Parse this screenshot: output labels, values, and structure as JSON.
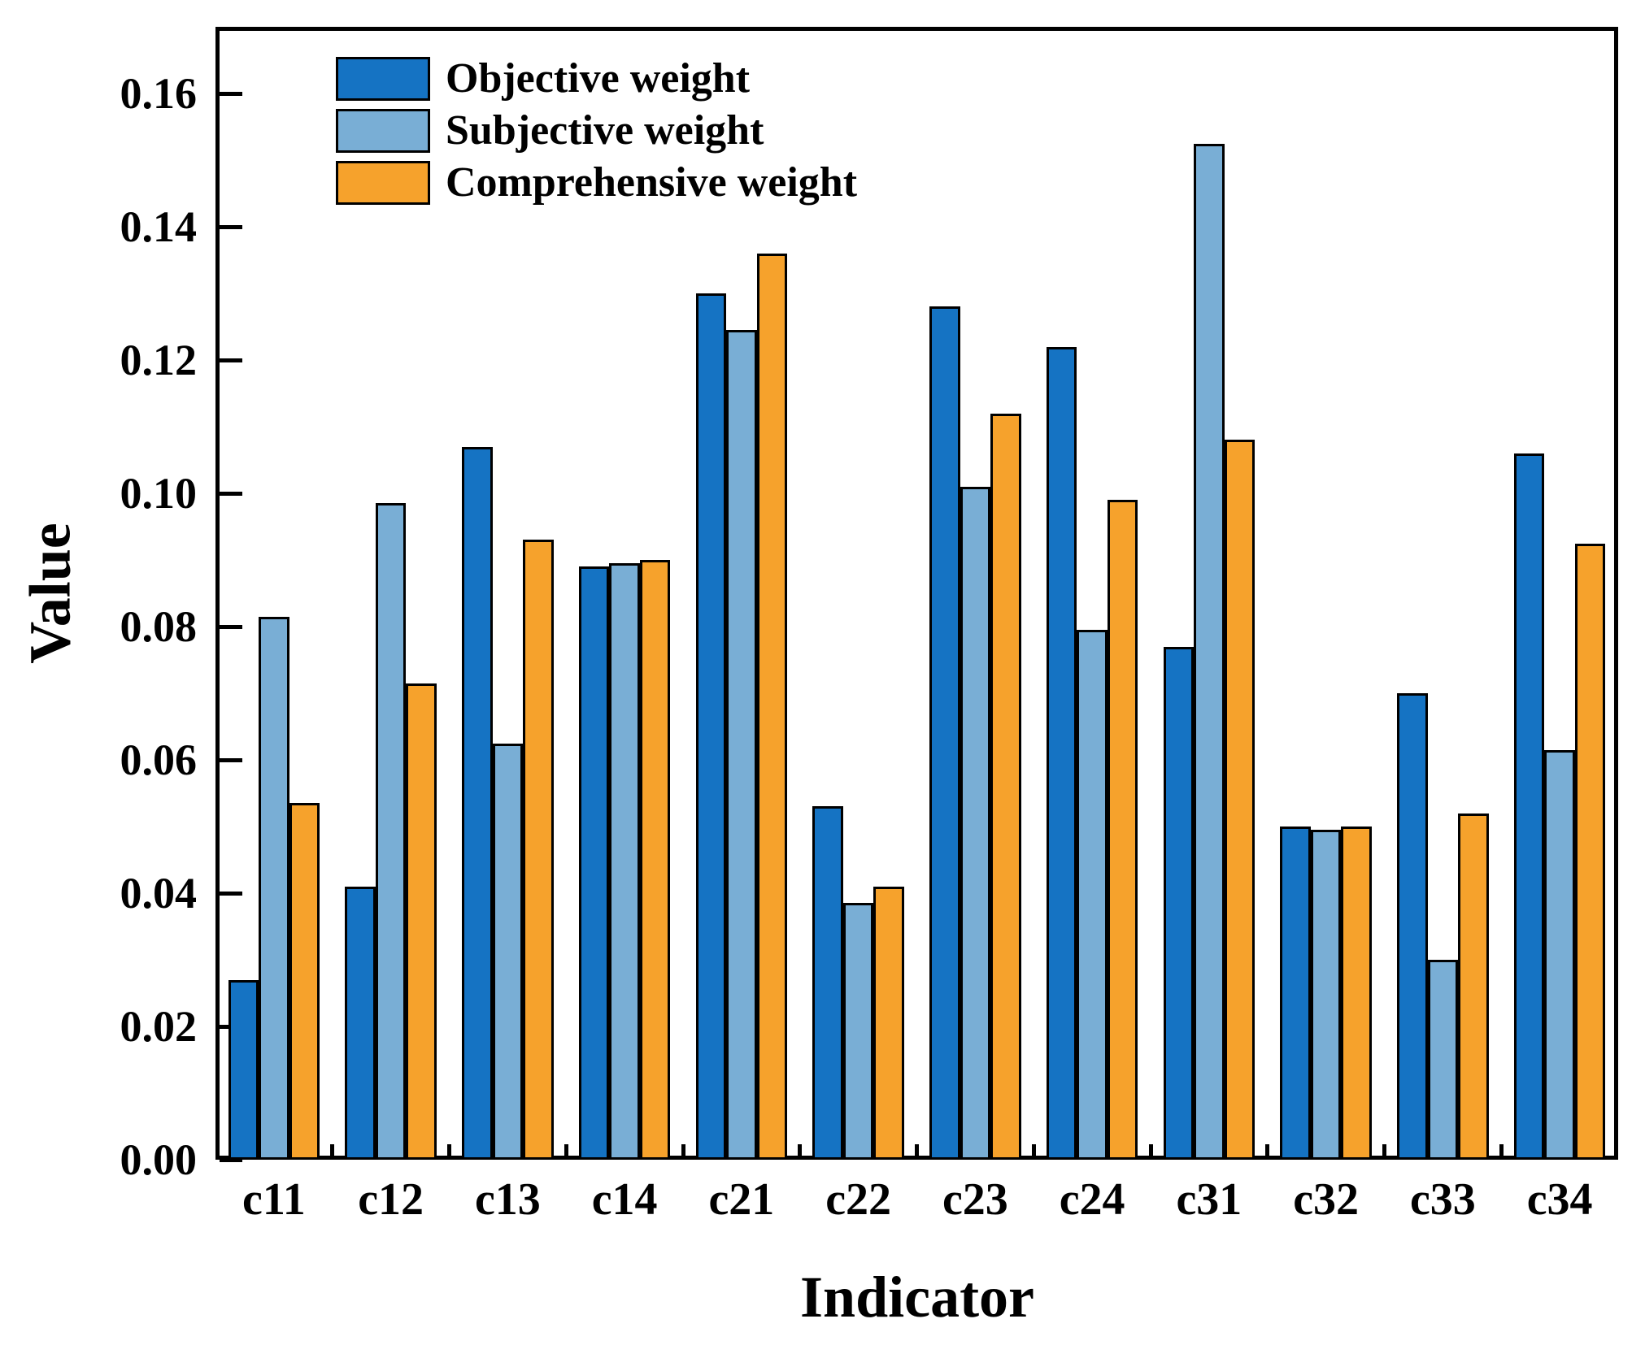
{
  "figure": {
    "background": "#ffffff",
    "frame_color": "#000000"
  },
  "y_axis": {
    "title": "Value",
    "tick_labels": [
      "0.00",
      "0.02",
      "0.04",
      "0.06",
      "0.08",
      "0.10",
      "0.12",
      "0.14",
      "0.16"
    ],
    "major_step": 0.02,
    "max_value": 0.1704,
    "min_value": 0
  },
  "x_axis": {
    "title": "Indicator",
    "tick_labels": [
      "c11",
      "c12",
      "c13",
      "c14",
      "c21",
      "c22",
      "c23",
      "c24",
      "c31",
      "c32",
      "c33",
      "c34"
    ]
  },
  "legend": {
    "items": [
      {
        "label": "Objective weight",
        "color": "#1573c3"
      },
      {
        "label": "Subjective weight",
        "color": "#79aed5"
      },
      {
        "label": "Comprehensive weight",
        "color": "#f6a22c"
      }
    ]
  },
  "chart_data": {
    "type": "bar",
    "title": "",
    "xlabel": "Indicator",
    "ylabel": "Value",
    "ylim": [
      0,
      0.17
    ],
    "grid": false,
    "legend_position": "upper left",
    "bar_edge_color": "#000000",
    "categories": [
      "c11",
      "c12",
      "c13",
      "c14",
      "c21",
      "c22",
      "c23",
      "c24",
      "c31",
      "c32",
      "c33",
      "c34"
    ],
    "series": [
      {
        "name": "Objective weight",
        "color": "#1573c3",
        "values": [
          0.027,
          0.041,
          0.107,
          0.089,
          0.13,
          0.053,
          0.128,
          0.122,
          0.077,
          0.05,
          0.07,
          0.106
        ]
      },
      {
        "name": "Subjective weight",
        "color": "#79aed5",
        "values": [
          0.0815,
          0.0985,
          0.0625,
          0.0895,
          0.1245,
          0.0385,
          0.101,
          0.0795,
          0.1525,
          0.0495,
          0.03,
          0.0615
        ]
      },
      {
        "name": "Comprehensive weight",
        "color": "#f6a22c",
        "values": [
          0.0535,
          0.0715,
          0.093,
          0.09,
          0.136,
          0.041,
          0.112,
          0.099,
          0.108,
          0.05,
          0.052,
          0.0925
        ]
      }
    ]
  }
}
